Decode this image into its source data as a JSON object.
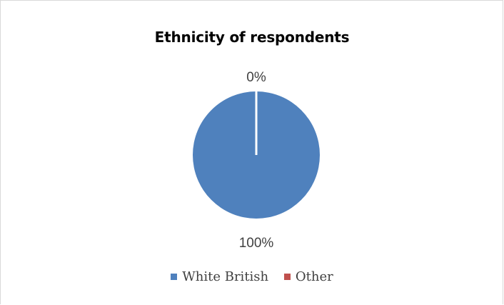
{
  "chart_data": {
    "type": "pie",
    "title": "Ethnicity of respondents",
    "categories": [
      "White British",
      "Other"
    ],
    "values": [
      100,
      0
    ],
    "data_labels": [
      "100%",
      "0%"
    ],
    "colors": [
      "#4f81bd",
      "#c0504d"
    ],
    "legend_position": "bottom"
  }
}
